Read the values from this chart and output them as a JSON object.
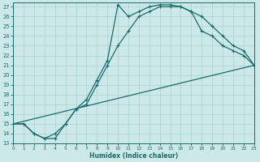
{
  "xlabel": "Humidex (Indice chaleur)",
  "xlim": [
    0,
    23
  ],
  "ylim": [
    13,
    27.4
  ],
  "xticks": [
    0,
    1,
    2,
    3,
    4,
    5,
    6,
    7,
    8,
    9,
    10,
    11,
    12,
    13,
    14,
    15,
    16,
    17,
    18,
    19,
    20,
    21,
    22,
    23
  ],
  "yticks": [
    13,
    14,
    15,
    16,
    17,
    18,
    19,
    20,
    21,
    22,
    23,
    24,
    25,
    26,
    27
  ],
  "bg_color": "#cce8e8",
  "grid_color": "#aad0d0",
  "line_color": "#1a6b6b",
  "curve1_x": [
    0,
    1,
    2,
    3,
    4,
    5,
    6,
    7,
    8,
    9,
    10,
    11,
    12,
    13,
    14,
    15,
    16,
    17,
    18,
    19,
    20,
    21,
    22,
    23
  ],
  "curve1_y": [
    15,
    15,
    14,
    13.5,
    13.5,
    15,
    16.5,
    17.5,
    19.5,
    21.5,
    27.2,
    26.0,
    26.5,
    27.0,
    27.2,
    27.2,
    27.0,
    26.5,
    24.5,
    24.0,
    23.0,
    22.5,
    22.0,
    21.0
  ],
  "curve2_x": [
    0,
    1,
    2,
    3,
    4,
    5,
    6,
    7,
    8,
    9,
    10,
    11,
    12,
    13,
    14,
    15,
    16,
    17,
    18,
    19,
    20,
    21,
    22,
    23
  ],
  "curve2_y": [
    15,
    15,
    14,
    13.5,
    14.0,
    15.0,
    16.5,
    17.0,
    19.0,
    21.0,
    23.0,
    24.5,
    26.0,
    26.5,
    27.0,
    27.0,
    27.0,
    26.5,
    26.0,
    25.0,
    24.0,
    23.0,
    22.5,
    21.0
  ],
  "line3_x": [
    0,
    23
  ],
  "line3_y": [
    15,
    21
  ]
}
